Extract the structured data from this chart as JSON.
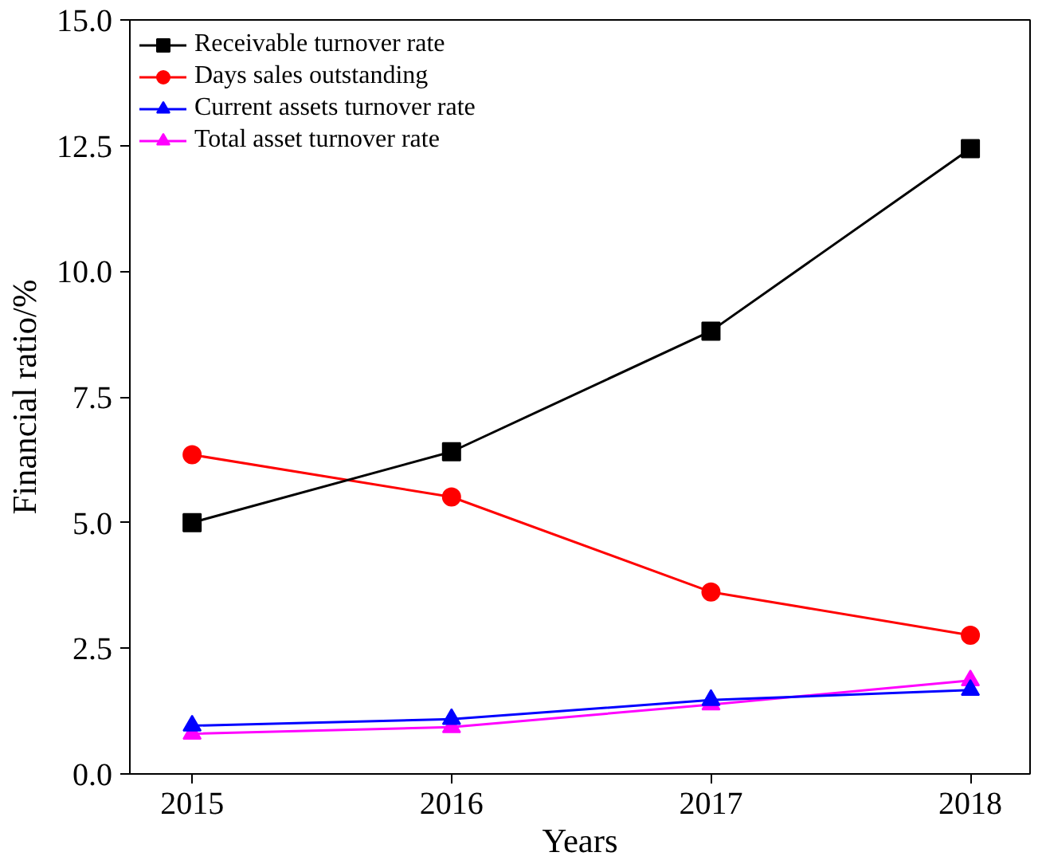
{
  "chart_data": {
    "type": "line",
    "xlabel": "Years",
    "ylabel": "Financial ratio/%",
    "x": [
      2015,
      2016,
      2017,
      2018
    ],
    "xlim": [
      2014.76,
      2018.23
    ],
    "xticks": [
      2015,
      2016,
      2017,
      2018
    ],
    "ylim": [
      0,
      15
    ],
    "yticks": [
      {
        "value": 0,
        "label": "0.0"
      },
      {
        "value": 2.5,
        "label": "2.5"
      },
      {
        "value": 5,
        "label": "5.0"
      },
      {
        "value": 7.5,
        "label": "7.5"
      },
      {
        "value": 10,
        "label": "10.0"
      },
      {
        "value": 12.5,
        "label": "12.5"
      },
      {
        "value": 15,
        "label": "15.0"
      }
    ],
    "series": [
      {
        "name": "Receivable turnover rate",
        "color": "#000000",
        "marker": "square",
        "values": [
          5.0,
          6.41,
          8.81,
          12.44
        ]
      },
      {
        "name": "Days sales outstanding",
        "color": "#ff0000",
        "marker": "circle",
        "values": [
          6.35,
          5.51,
          3.62,
          2.76
        ]
      },
      {
        "name": "Current assets turnover rate",
        "color": "#0000ff",
        "marker": "triangle",
        "values": [
          0.96,
          1.09,
          1.47,
          1.67
        ]
      },
      {
        "name": "Total asset turnover rate",
        "color": "#ff00ff",
        "marker": "triangle",
        "values": [
          0.8,
          0.93,
          1.38,
          1.86
        ]
      }
    ],
    "legend": "top left",
    "grid": false,
    "line_style": "solid"
  }
}
